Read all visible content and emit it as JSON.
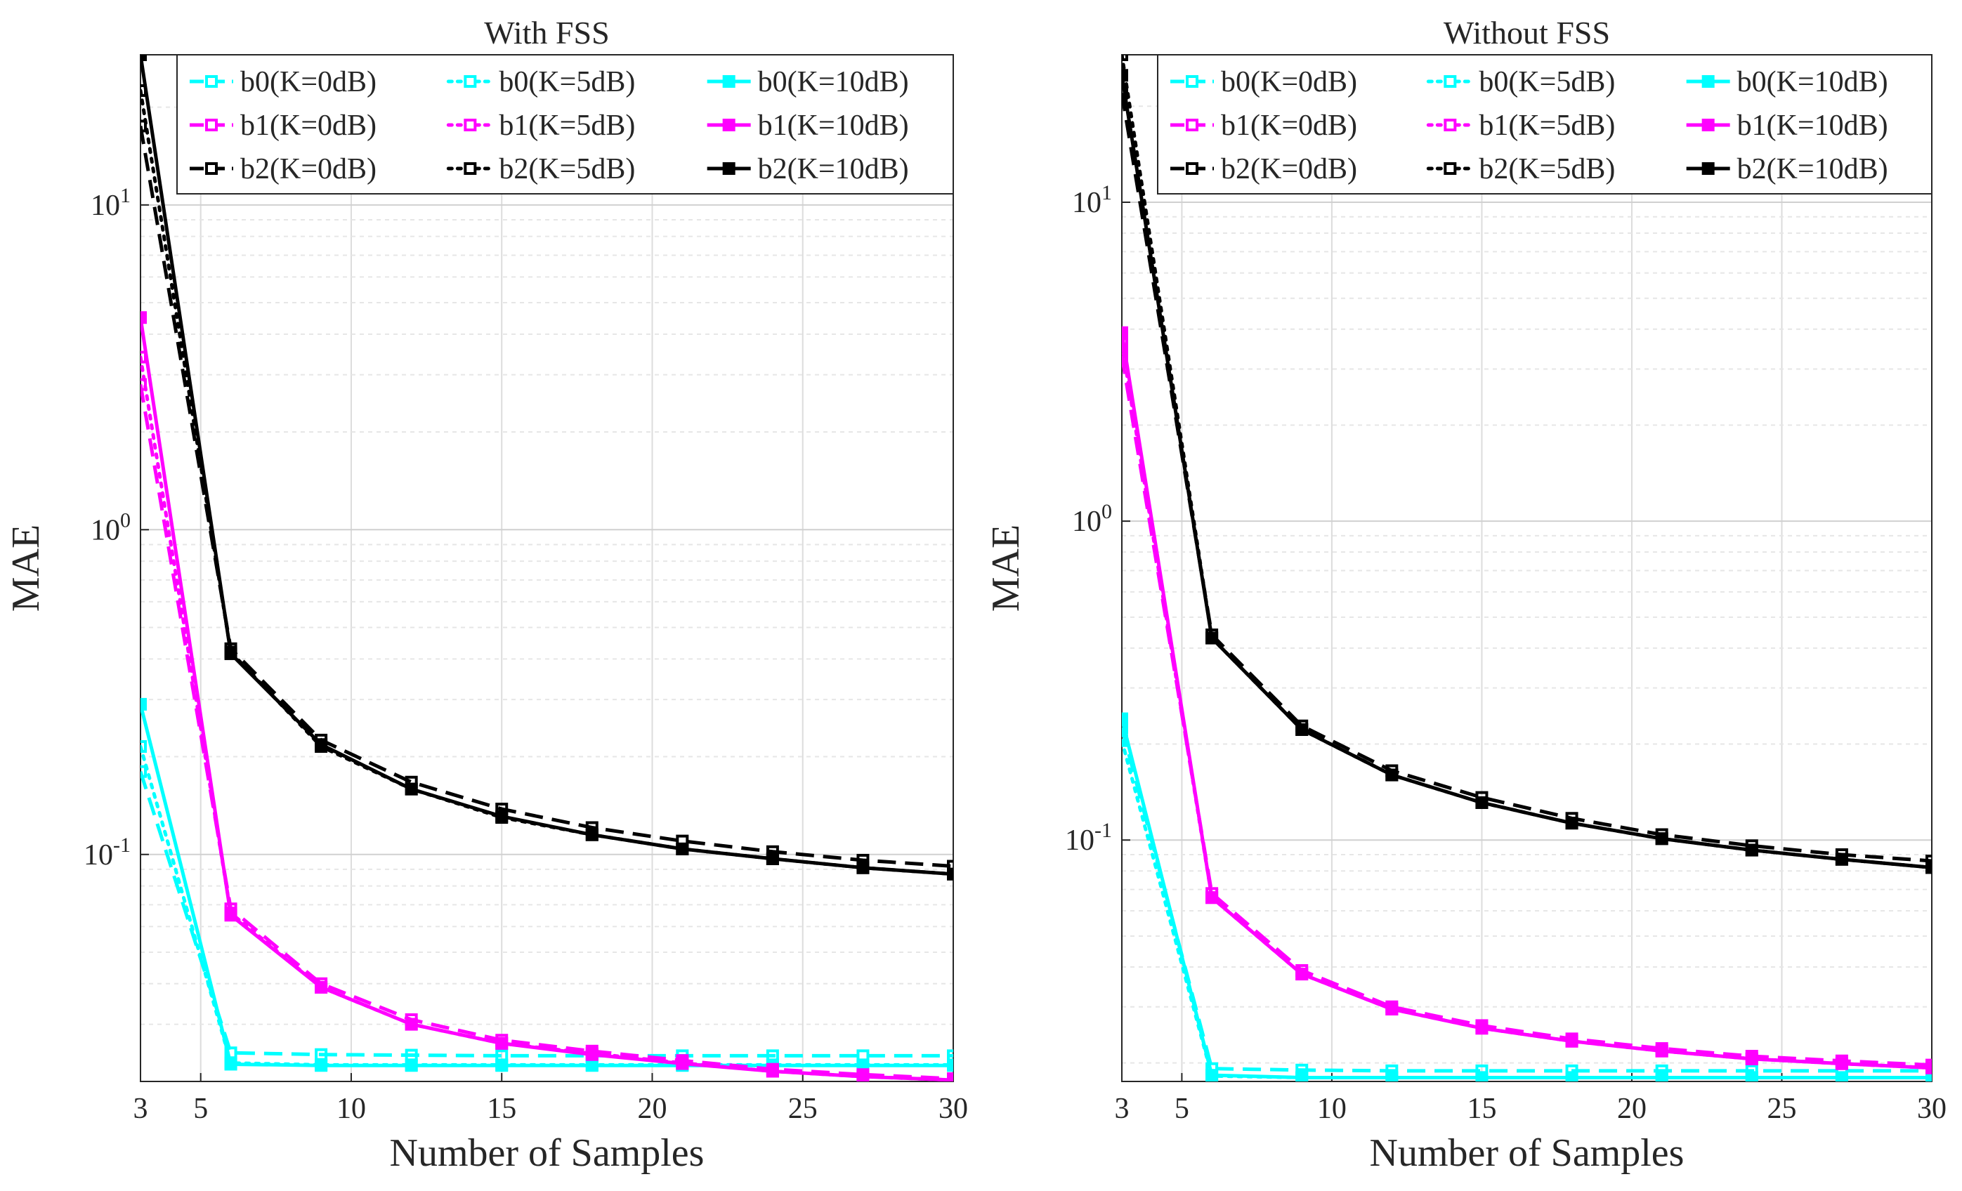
{
  "chart_data": [
    {
      "type": "line",
      "title": "With FSS",
      "xlabel": "Number of Samples",
      "ylabel": "MAE",
      "xscale": "linear",
      "yscale": "log",
      "xlim": [
        3,
        30
      ],
      "ylim": [
        0.02,
        29
      ],
      "xticks": [
        3,
        5,
        10,
        15,
        20,
        25,
        30
      ],
      "xtick_labels": [
        "3",
        "5",
        "10",
        "15",
        "20",
        "25",
        "30"
      ],
      "yticks": [
        0.1,
        1,
        10
      ],
      "ytick_labels": [
        {
          "base": "10",
          "exp": "-1"
        },
        {
          "base": "10",
          "exp": "0"
        },
        {
          "base": "10",
          "exp": "1"
        }
      ],
      "grid": true,
      "legend_location": "top-right",
      "x": [
        3,
        6,
        9,
        12,
        15,
        18,
        21,
        24,
        27,
        30
      ],
      "series": [
        {
          "name": "b0(K=0dB)",
          "color": "#00ffff",
          "style": "dashed",
          "values": [
            0.18,
            0.0245,
            0.0242,
            0.0241,
            0.024,
            0.024,
            0.024,
            0.024,
            0.024,
            0.024
          ]
        },
        {
          "name": "b0(K=5dB)",
          "color": "#00ffff",
          "style": "dotted",
          "values": [
            0.215,
            0.0228,
            0.0225,
            0.0225,
            0.0225,
            0.0225,
            0.0225,
            0.0225,
            0.0225,
            0.0225
          ]
        },
        {
          "name": "b0(K=10dB)",
          "color": "#00ffff",
          "style": "solid",
          "values": [
            0.29,
            0.0226,
            0.0224,
            0.0224,
            0.0224,
            0.0224,
            0.0224,
            0.0224,
            0.0224,
            0.0224
          ]
        },
        {
          "name": "b1(K=0dB)",
          "color": "#ff00ff",
          "style": "dashed",
          "values": [
            2.8,
            0.068,
            0.04,
            0.031,
            0.0268,
            0.0248,
            0.0232,
            0.0218,
            0.021,
            0.0204
          ]
        },
        {
          "name": "b1(K=5dB)",
          "color": "#ff00ff",
          "style": "dotted",
          "values": [
            3.4,
            0.066,
            0.039,
            0.03,
            0.0262,
            0.0244,
            0.0228,
            0.0215,
            0.0207,
            0.0202
          ]
        },
        {
          "name": "b1(K=10dB)",
          "color": "#ff00ff",
          "style": "solid",
          "values": [
            4.5,
            0.065,
            0.039,
            0.03,
            0.0262,
            0.0242,
            0.0227,
            0.0215,
            0.0207,
            0.0202
          ]
        },
        {
          "name": "b2(K=0dB)",
          "color": "#000000",
          "style": "dashed",
          "values": [
            17.5,
            0.43,
            0.225,
            0.167,
            0.138,
            0.121,
            0.11,
            0.102,
            0.096,
            0.092
          ]
        },
        {
          "name": "b2(K=5dB)",
          "color": "#000000",
          "style": "dotted",
          "values": [
            22.5,
            0.42,
            0.215,
            0.159,
            0.13,
            0.115,
            0.104,
            0.097,
            0.091,
            0.087
          ]
        },
        {
          "name": "b2(K=10dB)",
          "color": "#000000",
          "style": "solid",
          "values": [
            29,
            0.415,
            0.218,
            0.159,
            0.131,
            0.115,
            0.104,
            0.097,
            0.091,
            0.087
          ]
        }
      ]
    },
    {
      "type": "line",
      "title": "Without FSS",
      "xlabel": "Number of Samples",
      "ylabel": "MAE",
      "xscale": "linear",
      "yscale": "log",
      "xlim": [
        3,
        30
      ],
      "ylim": [
        0.0175,
        29
      ],
      "xticks": [
        3,
        5,
        10,
        15,
        20,
        25,
        30
      ],
      "xtick_labels": [
        "3",
        "5",
        "10",
        "15",
        "20",
        "25",
        "30"
      ],
      "yticks": [
        0.1,
        1,
        10
      ],
      "ytick_labels": [
        {
          "base": "10",
          "exp": "-1"
        },
        {
          "base": "10",
          "exp": "0"
        },
        {
          "base": "10",
          "exp": "1"
        }
      ],
      "grid": true,
      "legend_location": "top-right",
      "x": [
        3,
        6,
        9,
        12,
        15,
        18,
        21,
        24,
        27,
        30
      ],
      "series": [
        {
          "name": "b0(K=0dB)",
          "color": "#00ffff",
          "style": "dashed",
          "values": [
            0.225,
            0.0192,
            0.019,
            0.0189,
            0.0189,
            0.0189,
            0.0189,
            0.0189,
            0.0189,
            0.0189
          ]
        },
        {
          "name": "b0(K=5dB)",
          "color": "#00ffff",
          "style": "dotted",
          "values": [
            0.205,
            0.0182,
            0.018,
            0.018,
            0.018,
            0.018,
            0.018,
            0.018,
            0.018,
            0.018
          ]
        },
        {
          "name": "b0(K=10dB)",
          "color": "#00ffff",
          "style": "solid",
          "values": [
            0.24,
            0.0183,
            0.018,
            0.018,
            0.018,
            0.018,
            0.018,
            0.018,
            0.018,
            0.018
          ]
        },
        {
          "name": "b1(K=0dB)",
          "color": "#ff00ff",
          "style": "dashed",
          "values": [
            3.3,
            0.068,
            0.039,
            0.03,
            0.0262,
            0.0238,
            0.0222,
            0.021,
            0.0203,
            0.0197
          ]
        },
        {
          "name": "b1(K=5dB)",
          "color": "#ff00ff",
          "style": "dotted",
          "values": [
            3.6,
            0.066,
            0.038,
            0.0295,
            0.0257,
            0.0234,
            0.0218,
            0.0206,
            0.0199,
            0.0193
          ]
        },
        {
          "name": "b1(K=10dB)",
          "color": "#ff00ff",
          "style": "solid",
          "values": [
            3.9,
            0.066,
            0.038,
            0.0295,
            0.0257,
            0.0234,
            0.0218,
            0.0206,
            0.0199,
            0.0193
          ]
        },
        {
          "name": "b2(K=0dB)",
          "color": "#000000",
          "style": "dashed",
          "values": [
            22,
            0.44,
            0.228,
            0.165,
            0.136,
            0.117,
            0.104,
            0.096,
            0.09,
            0.086
          ]
        },
        {
          "name": "b2(K=5dB)",
          "color": "#000000",
          "style": "dotted",
          "values": [
            29,
            0.43,
            0.222,
            0.16,
            0.131,
            0.113,
            0.101,
            0.093,
            0.087,
            0.082
          ]
        },
        {
          "name": "b2(K=10dB)",
          "color": "#000000",
          "style": "solid",
          "values": [
            25,
            0.43,
            0.222,
            0.16,
            0.131,
            0.113,
            0.101,
            0.093,
            0.087,
            0.082
          ]
        }
      ]
    }
  ]
}
